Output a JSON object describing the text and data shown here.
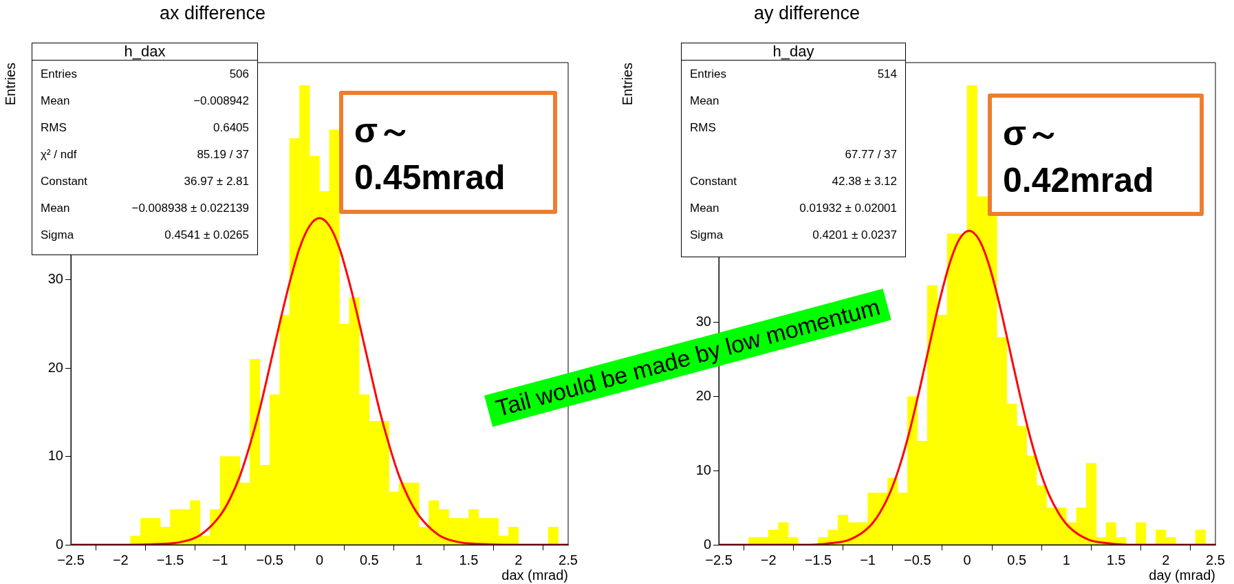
{
  "chart_data": [
    {
      "type": "histogram",
      "title": "ax difference",
      "xlabel": "dax (mrad)",
      "ylabel": "Entries",
      "grid": false,
      "legend": false,
      "bins": [
        -2.5,
        -2.4,
        -2.3,
        -2.2,
        -2.1,
        -2,
        -1.9,
        -1.8,
        -1.7,
        -1.6,
        -1.5,
        -1.4,
        -1.3,
        -1.2,
        -1.1,
        -1,
        -0.9,
        -0.8,
        -0.7,
        -0.6,
        -0.5,
        -0.4,
        -0.3,
        -0.2,
        -0.1,
        0,
        0.1,
        0.2,
        0.3,
        0.4,
        0.5,
        0.6,
        0.7,
        0.8,
        0.9,
        1,
        1.1,
        1.2,
        1.3,
        1.4,
        1.5,
        1.6,
        1.7,
        1.8,
        1.9,
        2,
        2.1,
        2.2,
        2.3,
        2.4,
        2.5
      ],
      "series": [
        {
          "type": "histogram",
          "color": "#ffff00",
          "values": [
            0,
            0,
            0,
            0,
            0,
            0,
            1,
            3,
            3,
            2,
            4,
            4,
            5,
            1,
            4,
            10,
            10,
            7,
            21,
            9,
            17,
            26,
            46,
            52,
            44,
            40,
            47,
            25,
            28,
            17,
            14,
            14,
            6,
            7,
            7,
            2,
            5,
            4,
            3,
            3,
            4,
            3,
            3,
            1,
            2,
            0,
            0,
            0,
            2,
            0
          ]
        },
        {
          "type": "line",
          "color": "#ff0000",
          "x": [
            -2.5,
            -2,
            -1.6,
            -1.4,
            -1.2,
            -1,
            -0.9,
            -0.8,
            -0.7,
            -0.6,
            -0.5,
            -0.4,
            -0.3,
            -0.2,
            -0.1,
            0,
            0.1,
            0.2,
            0.3,
            0.4,
            0.5,
            0.6,
            0.7,
            0.8,
            0.9,
            1,
            1.2,
            1.4,
            1.6,
            2,
            2.5
          ],
          "values": [
            0,
            0,
            0.1,
            0.3,
            1.1,
            3.3,
            5.2,
            7.8,
            11.3,
            15.4,
            20.2,
            25.1,
            29.7,
            33.6,
            36.1,
            37,
            36.1,
            33.6,
            29.7,
            25.1,
            20.2,
            15.4,
            11.3,
            7.8,
            5.2,
            3.3,
            1.1,
            0.3,
            0.1,
            0,
            0
          ]
        }
      ],
      "xlim": [
        -2.5,
        2.5
      ],
      "xticks": [
        -2.5,
        -2,
        -1.5,
        -1,
        -0.5,
        0,
        0.5,
        1,
        1.5,
        2,
        2.5
      ],
      "ylim": [
        0,
        54.6
      ],
      "yticks": [
        0,
        10,
        20,
        30
      ],
      "annotations": [
        "h_dax",
        "Entries\t506",
        "Mean\t−0.008942",
        "RMS\t0.6405",
        "χ² / ndf\t85.19 / 37",
        "Constant\t36.97 ± 2.81",
        "Mean\t−0.008938 ± 0.022139",
        "Sigma\t0.4541 ± 0.0265",
        "σ～ 0.45mrad",
        "Tail would be made by low momentum"
      ]
    },
    {
      "type": "histogram",
      "title": "ay difference",
      "xlabel": "day (mrad)",
      "ylabel": "Entries",
      "grid": false,
      "legend": false,
      "bins": [
        -2.5,
        -2.4,
        -2.3,
        -2.2,
        -2.1,
        -2,
        -1.9,
        -1.8,
        -1.7,
        -1.6,
        -1.5,
        -1.4,
        -1.3,
        -1.2,
        -1.1,
        -1,
        -0.9,
        -0.8,
        -0.7,
        -0.6,
        -0.5,
        -0.4,
        -0.3,
        -0.2,
        -0.1,
        0,
        0.1,
        0.2,
        0.3,
        0.4,
        0.5,
        0.6,
        0.7,
        0.8,
        0.9,
        1,
        1.1,
        1.2,
        1.3,
        1.4,
        1.5,
        1.6,
        1.7,
        1.8,
        1.9,
        2,
        2.1,
        2.2,
        2.3,
        2.4,
        2.5
      ],
      "series": [
        {
          "type": "histogram",
          "color": "#ffff00",
          "values": [
            0,
            0,
            0,
            1,
            1,
            2,
            3,
            1,
            0,
            0,
            1,
            2,
            4,
            3,
            3,
            7,
            7,
            9,
            7,
            20,
            14,
            35,
            31,
            42,
            42,
            62,
            47,
            47,
            28,
            19,
            16,
            12,
            8,
            5,
            5,
            3,
            5,
            11,
            1,
            3,
            1,
            0,
            3,
            0,
            2,
            1,
            0,
            0,
            2,
            0
          ]
        },
        {
          "type": "line",
          "color": "#ff0000",
          "x": [
            -2.5,
            -2,
            -1.58,
            -1.38,
            -1.18,
            -0.98,
            -0.88,
            -0.78,
            -0.68,
            -0.58,
            -0.48,
            -0.38,
            -0.28,
            -0.18,
            -0.08,
            0.02,
            0.12,
            0.22,
            0.32,
            0.42,
            0.52,
            0.62,
            0.72,
            0.82,
            0.92,
            1.02,
            1.22,
            1.42,
            1.62,
            2,
            2.5
          ],
          "values": [
            0,
            0,
            0,
            0.2,
            0.7,
            2.5,
            4.3,
            6.9,
            10.6,
            15.3,
            20.9,
            26.9,
            32.8,
            37.8,
            41.2,
            42.4,
            41.2,
            37.8,
            32.8,
            26.9,
            20.9,
            15.3,
            10.6,
            6.9,
            4.3,
            2.5,
            0.7,
            0.2,
            0,
            0,
            0
          ]
        }
      ],
      "xlim": [
        -2.5,
        2.5
      ],
      "xticks": [
        -2.5,
        -2,
        -1.5,
        -1,
        -0.5,
        0,
        0.5,
        1,
        1.5,
        2,
        2.5
      ],
      "ylim": [
        0,
        65.1
      ],
      "yticks": [
        0,
        10,
        20,
        30
      ],
      "annotations": [
        "h_day",
        "Entries\t514",
        "Mean",
        "RMS",
        "\t67.77 / 37",
        "Constant\t42.38 ± 3.12",
        "Mean\t0.01932 ± 0.02001",
        "Sigma\t0.4201 ± 0.0237",
        "σ～ 0.42mrad"
      ]
    }
  ]
}
